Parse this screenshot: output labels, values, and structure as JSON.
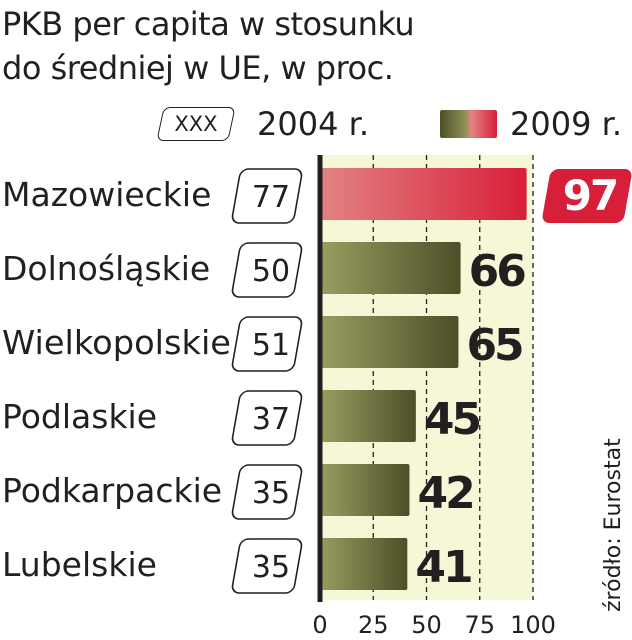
{
  "title_lines": [
    "PKB per capita w stosunku",
    "do średniej w UE, w proc."
  ],
  "legend": {
    "sample_2004": "XXX",
    "label_2004": "2004 r.",
    "label_2009": "2009 r."
  },
  "source": "źródło: Eurostat",
  "colors": {
    "bar_green_dark": "#4d4f27",
    "bar_green_light": "#9a9d62",
    "bar_red_light": "#e28383",
    "bar_red_dark": "#d81f39",
    "plot_background": "#f5f7d6",
    "text": "#231f20"
  },
  "chart_data": {
    "type": "bar",
    "orientation": "horizontal",
    "categories": [
      "Mazowieckie",
      "Dolnośląskie",
      "Wielkopolskie",
      "Podlaskie",
      "Podkarpackie",
      "Lubelskie"
    ],
    "series": [
      {
        "name": "2004 r.",
        "values": [
          77,
          50,
          51,
          37,
          35,
          35
        ]
      },
      {
        "name": "2009 r.",
        "values": [
          97,
          66,
          65,
          45,
          42,
          41
        ]
      }
    ],
    "xlim": [
      0,
      100
    ],
    "xticks": [
      0,
      25,
      50,
      75,
      100
    ],
    "highlight_category": "Mazowieckie",
    "grid": "dashed vertical lines"
  }
}
